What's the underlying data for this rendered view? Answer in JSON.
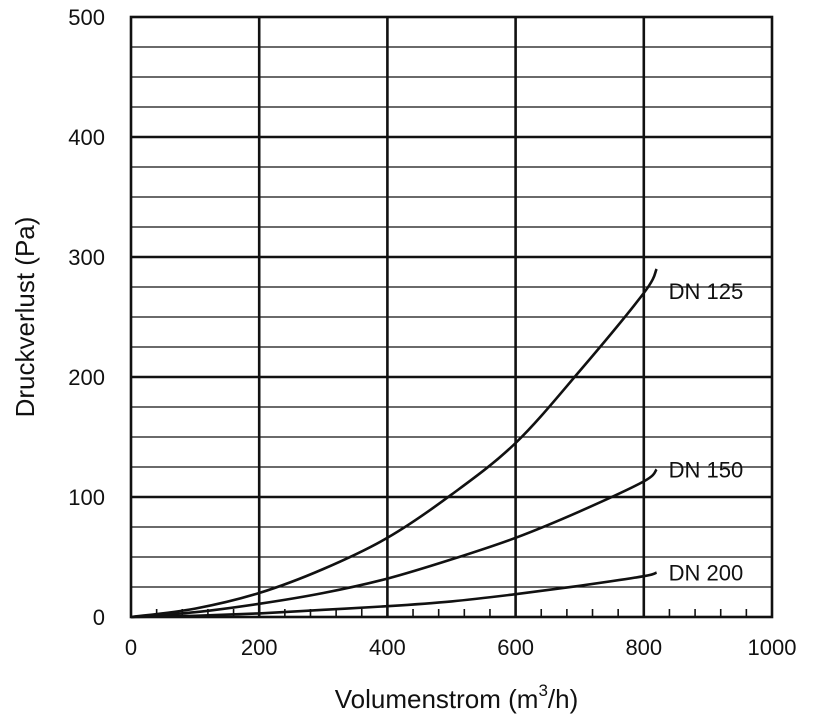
{
  "chart_data": {
    "type": "line",
    "title": "",
    "xlabel": "Volumenstrom (m",
    "xlabel_sup": "3",
    "xlabel_tail": "/h)",
    "ylabel": "Druckverlust (Pa)",
    "xlim": [
      0,
      1000
    ],
    "ylim": [
      0,
      500
    ],
    "x_ticks": [
      0,
      200,
      400,
      600,
      800,
      1000
    ],
    "y_ticks": [
      0,
      100,
      200,
      300,
      400,
      500
    ],
    "x_tick_labels": [
      "0",
      "200",
      "400",
      "600",
      "800",
      "1000"
    ],
    "y_tick_labels": [
      "0",
      "100",
      "200",
      "300",
      "400",
      "500"
    ],
    "y_minor_step": 25,
    "x_minor_step": 40,
    "grid": true,
    "legend": "inline labels at curve ends",
    "series": [
      {
        "name": "DN 125",
        "x": [
          0,
          100,
          200,
          300,
          400,
          500,
          600,
          700,
          800,
          820
        ],
        "y": [
          0,
          7,
          20,
          40,
          66,
          102,
          145,
          205,
          270,
          290
        ]
      },
      {
        "name": "DN 150",
        "x": [
          0,
          100,
          200,
          300,
          400,
          500,
          600,
          700,
          800,
          820
        ],
        "y": [
          0,
          4,
          11,
          20,
          32,
          48,
          66,
          88,
          113,
          123
        ]
      },
      {
        "name": "DN 200",
        "x": [
          0,
          100,
          200,
          300,
          400,
          500,
          600,
          700,
          800,
          820
        ],
        "y": [
          0,
          1,
          3,
          6,
          9,
          13,
          19,
          26,
          34,
          37
        ]
      }
    ]
  }
}
